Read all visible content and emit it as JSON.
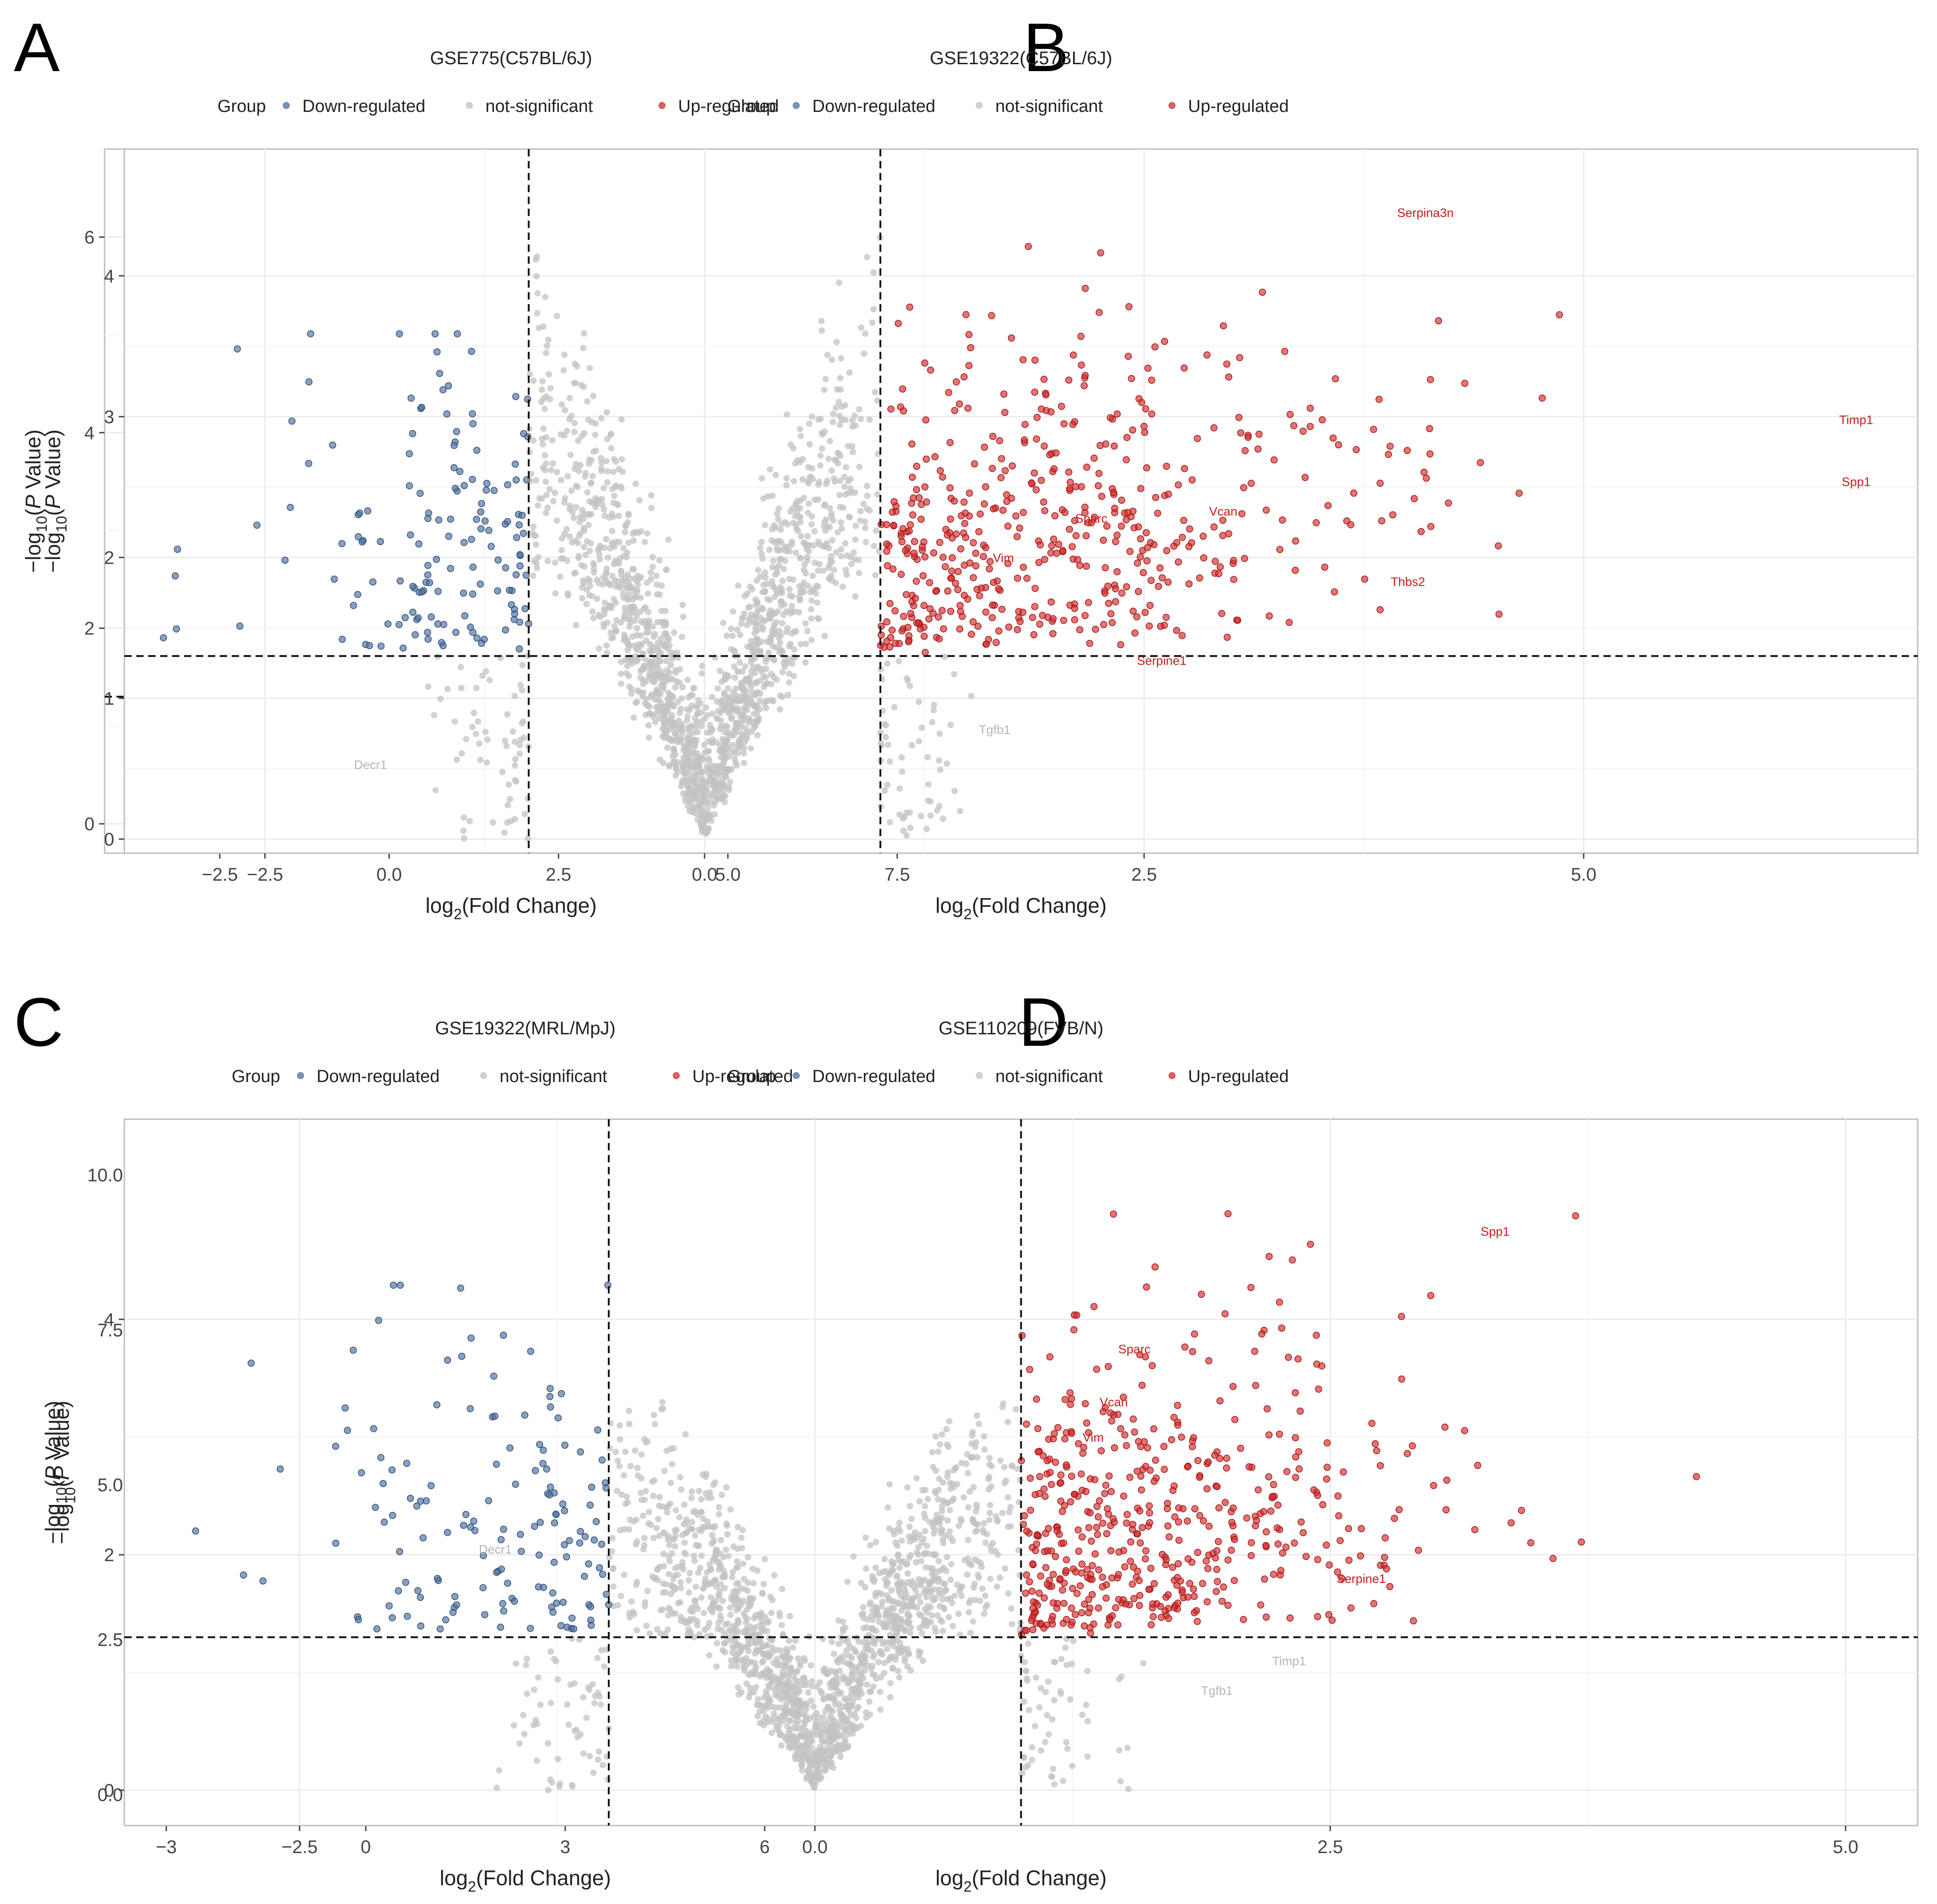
{
  "figure": {
    "legend_group_label": "Group",
    "legend_items": [
      {
        "label": "Down-regulated",
        "color": "#4a6fa0"
      },
      {
        "label": "not-significant",
        "color": "#c3c3c3"
      },
      {
        "label": "Up-regulated",
        "color": "#d62a2a"
      }
    ],
    "xlabel": "log2(Fold Change)",
    "ylabel": "−log10(P Value)",
    "colors": {
      "down": "#4a6fa0",
      "ns": "#c3c3c3",
      "up": "#d62a2a",
      "panel_border": "#bdbdbd",
      "grid": "#ebebeb"
    }
  },
  "chart_data": [
    {
      "panel_letter": "A",
      "type": "scatter",
      "title": "GSE775(C57BL/6J)",
      "xlabel": "log2(Fold Change)",
      "ylabel": "−log10(P Value)",
      "xlim": [
        -4.2,
        7.8
      ],
      "ylim": [
        -0.3,
        6.9
      ],
      "xticks": [
        -2.5,
        0.0,
        2.5,
        5.0,
        7.5
      ],
      "xtick_labels": [
        "−2.5",
        "0.0",
        "2.5",
        "5.0",
        "7.5"
      ],
      "yticks": [
        0,
        2,
        4,
        6
      ],
      "ytick_labels": [
        "0",
        "2",
        "4",
        "6"
      ],
      "vlines": [
        -1,
        1
      ],
      "hline": 1.3,
      "grid": true,
      "legend_position": "top",
      "labels": [
        {
          "text": "Spp1",
          "x": 7.2,
          "y": 4.5,
          "group": "up"
        },
        {
          "text": "Serpina3n",
          "x": 2.35,
          "y": 4.75,
          "group": "up"
        },
        {
          "text": "Serpine1",
          "x": 1.6,
          "y": 4.05,
          "group": "up"
        },
        {
          "text": "Sparc",
          "x": 2.0,
          "y": 3.65,
          "group": "up"
        },
        {
          "text": "Vcan",
          "x": 1.85,
          "y": 3.25,
          "group": "up"
        },
        {
          "text": "Timp1",
          "x": 4.5,
          "y": 2.25,
          "group": "up"
        },
        {
          "text": "Tgfb1",
          "x": 2.3,
          "y": 1.95,
          "group": "up"
        },
        {
          "text": "Thbs2",
          "x": 2.7,
          "y": 1.6,
          "group": "up"
        },
        {
          "text": "Decr1",
          "x": -2.35,
          "y": 2.55,
          "group": "down"
        }
      ]
    },
    {
      "panel_letter": "B",
      "type": "scatter",
      "title": "GSE19322(C57BL/6J)",
      "xlabel": "log2(Fold Change)",
      "ylabel": "−log10(P Value)",
      "xlim": [
        -3.3,
        6.9
      ],
      "ylim": [
        -0.1,
        4.9
      ],
      "xticks": [
        -2.5,
        0.0,
        2.5,
        5.0
      ],
      "xtick_labels": [
        "−2.5",
        "0.0",
        "2.5",
        "5.0"
      ],
      "yticks": [
        0,
        1,
        2,
        3,
        4
      ],
      "ytick_labels": [
        "0",
        "1",
        "2",
        "3",
        "4"
      ],
      "vlines": [
        -1,
        1
      ],
      "hline": 1.3,
      "grid": true,
      "legend_position": "top",
      "labels": [
        {
          "text": "Serpina3n",
          "x": 4.1,
          "y": 4.45,
          "group": "up"
        },
        {
          "text": "Timp1",
          "x": 6.55,
          "y": 2.98,
          "group": "up"
        },
        {
          "text": "Spp1",
          "x": 6.55,
          "y": 2.54,
          "group": "up"
        },
        {
          "text": "Sparc",
          "x": 2.2,
          "y": 2.28,
          "group": "up"
        },
        {
          "text": "Vcan",
          "x": 2.95,
          "y": 2.33,
          "group": "up"
        },
        {
          "text": "Vim",
          "x": 1.7,
          "y": 2.0,
          "group": "up"
        },
        {
          "text": "Thbs2",
          "x": 4.0,
          "y": 1.83,
          "group": "up"
        },
        {
          "text": "Serpine1",
          "x": 2.6,
          "y": 1.27,
          "group": "up"
        },
        {
          "text": "Tgfb1",
          "x": 1.65,
          "y": 0.78,
          "group": "ns"
        },
        {
          "text": "Decr1",
          "x": -1.9,
          "y": 0.53,
          "group": "ns"
        }
      ]
    },
    {
      "panel_letter": "C",
      "type": "scatter",
      "title": "GSE19322(MRL/MpJ)",
      "xlabel": "log2(Fold Change)",
      "ylabel": "−log10(P Value)",
      "xlim": [
        -3.5,
        8.3
      ],
      "ylim": [
        -0.5,
        10.9
      ],
      "xticks": [
        -3,
        0,
        3,
        6
      ],
      "xtick_labels": [
        "−3",
        "0",
        "3",
        "6"
      ],
      "yticks": [
        0.0,
        2.5,
        5.0,
        7.5,
        10.0
      ],
      "ytick_labels": [
        "0.0",
        "2.5",
        "5.0",
        "7.5",
        "10.0"
      ],
      "vlines": [
        -1,
        1
      ],
      "hline": 1.3,
      "grid": true,
      "legend_position": "top",
      "labels": [
        {
          "text": "Timp1",
          "x": 6.9,
          "y": 8.9,
          "group": "up"
        },
        {
          "text": "Spp1",
          "x": 8.0,
          "y": 8.2,
          "group": "up"
        },
        {
          "text": "Sparc",
          "x": 2.1,
          "y": 7.2,
          "group": "up"
        },
        {
          "text": "Thbs2",
          "x": 4.5,
          "y": 5.7,
          "group": "up"
        },
        {
          "text": "Vim",
          "x": 2.4,
          "y": 4.35,
          "group": "up"
        },
        {
          "text": "Vcan",
          "x": 3.15,
          "y": 4.3,
          "group": "up"
        },
        {
          "text": "Tgfb1",
          "x": 2.4,
          "y": 3.95,
          "group": "up"
        },
        {
          "text": "Serpina3n",
          "x": 3.3,
          "y": 3.85,
          "group": "up"
        },
        {
          "text": "Serpine1",
          "x": 2.75,
          "y": 3.3,
          "group": "up"
        },
        {
          "text": "Decr1",
          "x": -2.0,
          "y": 4.65,
          "group": "ns"
        }
      ]
    },
    {
      "panel_letter": "D",
      "type": "scatter",
      "title": "GSE110209(FVB/N)",
      "xlabel": "log2(Fold Change)",
      "ylabel": "−log10(P Value)",
      "xlim": [
        -3.35,
        5.35
      ],
      "ylim": [
        -0.3,
        5.7
      ],
      "xticks": [
        -2.5,
        0.0,
        2.5,
        5.0
      ],
      "xtick_labels": [
        "−2.5",
        "0.0",
        "2.5",
        "5.0"
      ],
      "yticks": [
        0,
        2,
        4
      ],
      "ytick_labels": [
        "0",
        "2",
        "4"
      ],
      "vlines": [
        -1,
        1
      ],
      "hline": 1.3,
      "grid": true,
      "legend_position": "top",
      "labels": [
        {
          "text": "Spp1",
          "x": 3.3,
          "y": 4.75,
          "group": "up"
        },
        {
          "text": "Sparc",
          "x": 1.55,
          "y": 3.75,
          "group": "up"
        },
        {
          "text": "Vcan",
          "x": 1.45,
          "y": 3.3,
          "group": "up"
        },
        {
          "text": "Vim",
          "x": 1.35,
          "y": 3.0,
          "group": "up"
        },
        {
          "text": "Serpine1",
          "x": 2.65,
          "y": 1.8,
          "group": "up"
        },
        {
          "text": "Timp1",
          "x": 2.3,
          "y": 1.1,
          "group": "ns"
        },
        {
          "text": "Tgfb1",
          "x": 1.95,
          "y": 0.85,
          "group": "ns"
        },
        {
          "text": "Decr1",
          "x": -1.55,
          "y": 2.05,
          "group": "ns"
        }
      ]
    }
  ]
}
